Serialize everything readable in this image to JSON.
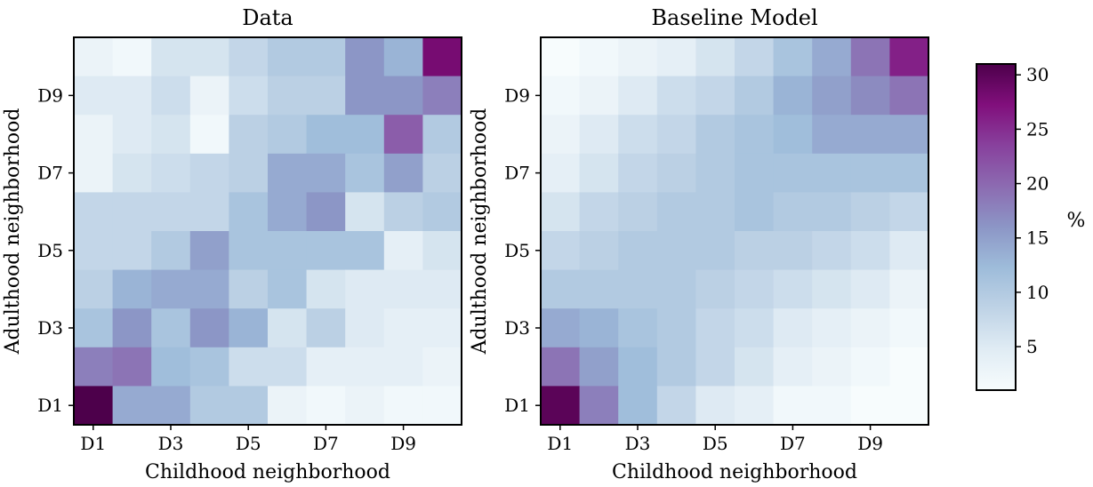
{
  "chart_data": [
    {
      "type": "heatmap",
      "title": "Data",
      "xlabel": "Childhood neighborhood",
      "ylabel": "Adulthood neighborhood",
      "x_categories": [
        "D1",
        "D2",
        "D3",
        "D4",
        "D5",
        "D6",
        "D7",
        "D8",
        "D9",
        "D10"
      ],
      "y_categories": [
        "D1",
        "D2",
        "D3",
        "D4",
        "D5",
        "D6",
        "D7",
        "D8",
        "D9",
        "D10"
      ],
      "x_tick_labels": [
        "D1",
        "D3",
        "D5",
        "D7",
        "D9"
      ],
      "y_tick_labels": [
        "D1",
        "D3",
        "D5",
        "D7",
        "D9"
      ],
      "values_rows_top_to_bottom": [
        [
          3,
          2,
          6,
          6,
          8,
          10,
          10,
          16,
          13,
          28
        ],
        [
          5,
          5,
          7,
          3,
          7,
          9,
          9,
          16,
          16,
          18
        ],
        [
          3,
          5,
          6,
          2,
          9,
          10,
          12,
          12,
          21,
          10
        ],
        [
          3,
          6,
          7,
          8,
          9,
          14,
          14,
          11,
          15,
          9
        ],
        [
          8,
          8,
          8,
          8,
          11,
          14,
          16,
          6,
          9,
          10
        ],
        [
          8,
          8,
          10,
          15,
          11,
          11,
          11,
          11,
          4,
          6
        ],
        [
          9,
          13,
          14,
          14,
          9,
          11,
          6,
          5,
          5,
          5
        ],
        [
          11,
          16,
          11,
          16,
          13,
          6,
          9,
          5,
          4,
          4
        ],
        [
          18,
          19,
          12,
          11,
          7,
          7,
          4,
          4,
          4,
          3
        ],
        [
          31,
          14,
          14,
          10,
          10,
          3,
          2,
          3,
          2,
          2
        ]
      ]
    },
    {
      "type": "heatmap",
      "title": "Baseline Model",
      "xlabel": "Childhood neighborhood",
      "ylabel": "Adulthood neighborhood",
      "x_categories": [
        "D1",
        "D2",
        "D3",
        "D4",
        "D5",
        "D6",
        "D7",
        "D8",
        "D9",
        "D10"
      ],
      "y_categories": [
        "D1",
        "D2",
        "D3",
        "D4",
        "D5",
        "D6",
        "D7",
        "D8",
        "D9",
        "D10"
      ],
      "x_tick_labels": [
        "D1",
        "D3",
        "D5",
        "D7",
        "D9"
      ],
      "y_tick_labels": [
        "D1",
        "D3",
        "D5",
        "D7",
        "D9"
      ],
      "values_rows_top_to_bottom": [
        [
          1,
          2,
          3,
          4,
          6,
          8,
          11,
          14,
          19,
          26
        ],
        [
          2,
          3,
          5,
          7,
          8,
          10,
          13,
          15,
          17,
          19
        ],
        [
          3,
          5,
          7,
          8,
          10,
          11,
          12,
          14,
          14,
          14
        ],
        [
          4,
          6,
          8,
          9,
          10,
          11,
          11,
          11,
          11,
          11
        ],
        [
          6,
          8,
          9,
          10,
          10,
          11,
          10,
          10,
          9,
          8
        ],
        [
          8,
          9,
          10,
          10,
          10,
          9,
          9,
          8,
          7,
          5
        ],
        [
          10,
          10,
          10,
          10,
          9,
          8,
          7,
          6,
          5,
          3
        ],
        [
          14,
          13,
          11,
          10,
          8,
          7,
          5,
          4,
          3,
          2
        ],
        [
          19,
          15,
          12,
          10,
          8,
          6,
          4,
          3,
          2,
          1
        ],
        [
          30,
          18,
          12,
          8,
          5,
          4,
          2,
          2,
          1,
          1
        ]
      ]
    }
  ],
  "colorbar": {
    "label": "%",
    "min": 1,
    "max": 31,
    "ticks": [
      5,
      10,
      15,
      20,
      25,
      30
    ],
    "colormap": "BuPu",
    "colormap_stops": [
      "#f7fcfd",
      "#e0ecf4",
      "#bfd3e6",
      "#9ebcda",
      "#8c96c6",
      "#8c6bb1",
      "#88419d",
      "#810f7c",
      "#4d004b"
    ]
  }
}
